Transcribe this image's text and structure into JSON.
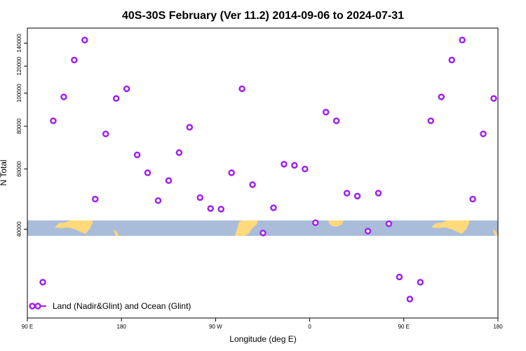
{
  "chart_data": {
    "type": "scatter",
    "title": "40S-30S February (Ver 11.2)   2014-09-06 to 2024-07-31",
    "xlabel": "Longitude (deg E)",
    "ylabel": "N Total",
    "y_scale": "log",
    "ylim": [
      22000,
      155000
    ],
    "yticks": [
      40000,
      60000,
      80000,
      100000,
      120000,
      140000
    ],
    "ytick_labels": [
      "40000",
      "60000",
      "80000",
      "100000",
      "120000",
      "140000"
    ],
    "xticks": [
      "90 E",
      "180",
      "90 W",
      "0",
      "90 E",
      "180"
    ],
    "x_units_note": "longitude wraps from 90 E eastward through 180 and 0 to 180",
    "legend": {
      "label": "Land (Nadir&Glint) and Ocean (Glint)",
      "position": "bottom-left"
    },
    "marker_color": "#a020f0",
    "map_strip_colors": {
      "ocean": "#a9bcda",
      "land": "#ffd97a"
    },
    "series": [
      {
        "name": "Land (Nadir&Glint) and Ocean (Glint)",
        "points": [
          {
            "lon": 95,
            "n": 28000
          },
          {
            "lon": 115,
            "n": 83000
          },
          {
            "lon": 125,
            "n": 97500
          },
          {
            "lon": 135,
            "n": 125000
          },
          {
            "lon": 145,
            "n": 143000
          },
          {
            "lon": 155,
            "n": 49000
          },
          {
            "lon": 165,
            "n": 76000
          },
          {
            "lon": 175,
            "n": 96500
          },
          {
            "lon": -175,
            "n": 103000
          },
          {
            "lon": -165,
            "n": 66000
          },
          {
            "lon": -155,
            "n": 58500
          },
          {
            "lon": -145,
            "n": 48500
          },
          {
            "lon": -135,
            "n": 55500
          },
          {
            "lon": -125,
            "n": 67000
          },
          {
            "lon": -115,
            "n": 79500
          },
          {
            "lon": -105,
            "n": 49500
          },
          {
            "lon": -95,
            "n": 46000
          },
          {
            "lon": -85,
            "n": 45800
          },
          {
            "lon": -75,
            "n": 58500
          },
          {
            "lon": -65,
            "n": 103000
          },
          {
            "lon": -55,
            "n": 54000
          },
          {
            "lon": -45,
            "n": 39000
          },
          {
            "lon": -35,
            "n": 46200
          },
          {
            "lon": -25,
            "n": 62000
          },
          {
            "lon": -15,
            "n": 61500
          },
          {
            "lon": -5,
            "n": 60000
          },
          {
            "lon": 5,
            "n": 41800
          },
          {
            "lon": 15,
            "n": 88000
          },
          {
            "lon": 25,
            "n": 83000
          },
          {
            "lon": 35,
            "n": 51000
          },
          {
            "lon": 45,
            "n": 50000
          },
          {
            "lon": 55,
            "n": 39500
          },
          {
            "lon": 65,
            "n": 51000
          },
          {
            "lon": 75,
            "n": 41500
          },
          {
            "lon": 85,
            "n": 29000
          },
          {
            "lon": 95,
            "n": 25000
          },
          {
            "lon": 105,
            "n": 28000
          },
          {
            "lon": 115,
            "n": 83000
          },
          {
            "lon": 125,
            "n": 97500
          },
          {
            "lon": 135,
            "n": 125000
          },
          {
            "lon": 145,
            "n": 143000
          },
          {
            "lon": 155,
            "n": 49000
          },
          {
            "lon": 165,
            "n": 76000
          },
          {
            "lon": 175,
            "n": 96500
          }
        ]
      }
    ]
  }
}
